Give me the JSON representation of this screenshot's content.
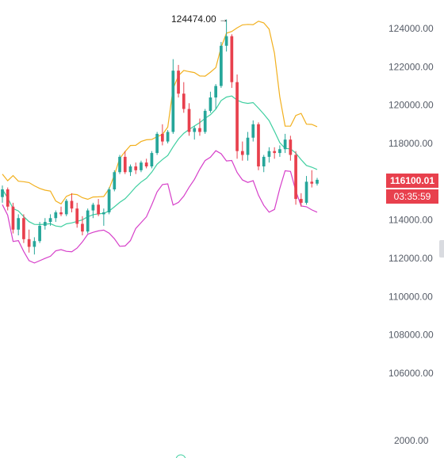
{
  "chart_data": {
    "type": "candlestick",
    "title": "",
    "overlay": "Bollinger Bands",
    "ylim": [
      104500,
      126000
    ],
    "y_ticks": [
      124000,
      122000,
      120000,
      118000,
      116000,
      114000,
      112000,
      110000,
      108000,
      106000
    ],
    "y_tick_labels": [
      "124000.00",
      "122000.00",
      "120000.00",
      "118000.00",
      "116000.00",
      "114000.00",
      "112000.00",
      "110000.00",
      "108000.00",
      "106000.00"
    ],
    "bottom_label": "2000.00",
    "peak_label": "124474.00",
    "peak_value": 124474,
    "current_price": "116100.01",
    "countdown": "03:35:59",
    "colors": {
      "up": "#26a69a",
      "down": "#e8404d",
      "upper_band": "#f2b01e",
      "middle_band": "#3fcfa0",
      "lower_band": "#d63fc9",
      "price_tag": "#e8404d"
    },
    "candles": [
      [
        115200,
        115800,
        114900,
        115600
      ],
      [
        115600,
        115700,
        114500,
        114700
      ],
      [
        114700,
        114900,
        113300,
        113500
      ],
      [
        113500,
        114300,
        113200,
        114100
      ],
      [
        114100,
        114300,
        112800,
        113000
      ],
      [
        113000,
        113500,
        112300,
        112600
      ],
      [
        112600,
        113100,
        112200,
        112900
      ],
      [
        112900,
        113900,
        112800,
        113700
      ],
      [
        113700,
        114100,
        113500,
        113900
      ],
      [
        113900,
        114300,
        113700,
        114100
      ],
      [
        114100,
        114500,
        113900,
        114400
      ],
      [
        114400,
        114700,
        114200,
        114300
      ],
      [
        114300,
        115100,
        114200,
        115000
      ],
      [
        115000,
        115400,
        114400,
        114600
      ],
      [
        114600,
        114900,
        113600,
        113800
      ],
      [
        113800,
        114200,
        113200,
        113400
      ],
      [
        113400,
        114600,
        113300,
        114500
      ],
      [
        114500,
        114900,
        114100,
        114800
      ],
      [
        114800,
        115100,
        114200,
        114300
      ],
      [
        114300,
        114600,
        113700,
        114400
      ],
      [
        114400,
        115700,
        114300,
        115600
      ],
      [
        115600,
        116600,
        115500,
        116500
      ],
      [
        116500,
        117400,
        116400,
        117300
      ],
      [
        117300,
        117600,
        116400,
        116500
      ],
      [
        116500,
        116900,
        116300,
        116800
      ],
      [
        116800,
        117000,
        116400,
        116600
      ],
      [
        116600,
        117100,
        116500,
        117000
      ],
      [
        117000,
        117200,
        116700,
        116800
      ],
      [
        116800,
        117600,
        116700,
        117500
      ],
      [
        117500,
        118600,
        117400,
        118500
      ],
      [
        118500,
        119000,
        117900,
        118100
      ],
      [
        118100,
        118700,
        118000,
        118600
      ],
      [
        118600,
        122400,
        118500,
        121800
      ],
      [
        121800,
        122100,
        120400,
        120600
      ],
      [
        120600,
        121200,
        119600,
        119800
      ],
      [
        119800,
        120100,
        118400,
        118600
      ],
      [
        118600,
        118900,
        118200,
        118800
      ],
      [
        118800,
        119300,
        118400,
        118600
      ],
      [
        118600,
        119800,
        118500,
        119700
      ],
      [
        119700,
        120700,
        119600,
        120400
      ],
      [
        120400,
        121100,
        119800,
        121000
      ],
      [
        121000,
        123300,
        120900,
        123100
      ],
      [
        123100,
        124474,
        122800,
        123600
      ],
      [
        123600,
        123700,
        120900,
        121200
      ],
      [
        121200,
        121600,
        117200,
        117600
      ],
      [
        117600,
        118100,
        117100,
        117400
      ],
      [
        117400,
        118600,
        117100,
        118300
      ],
      [
        118300,
        119200,
        118100,
        119000
      ],
      [
        119000,
        119100,
        116600,
        116800
      ],
      [
        116800,
        117400,
        116500,
        117300
      ],
      [
        117300,
        117800,
        117000,
        117600
      ],
      [
        117600,
        117800,
        117200,
        117500
      ],
      [
        117500,
        117900,
        117300,
        117700
      ],
      [
        117700,
        118500,
        117500,
        118200
      ],
      [
        118200,
        118400,
        117100,
        117400
      ],
      [
        117400,
        117600,
        114800,
        115100
      ],
      [
        115100,
        115400,
        114700,
        114900
      ],
      [
        114900,
        116300,
        114800,
        116000
      ],
      [
        116000,
        116600,
        115700,
        115900
      ],
      [
        115900,
        116200,
        115800,
        116100
      ]
    ]
  }
}
